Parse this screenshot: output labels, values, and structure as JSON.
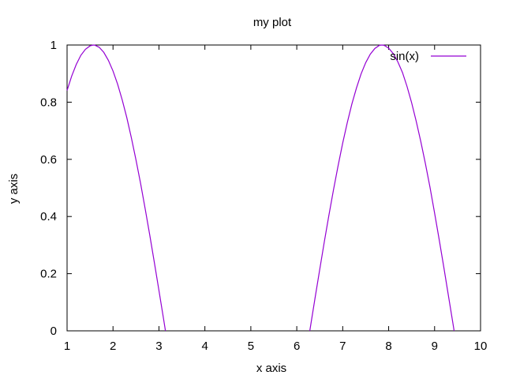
{
  "chart_data": {
    "type": "line",
    "title": "my plot",
    "xlabel": "x axis",
    "ylabel": "y axis",
    "xlim": [
      1,
      10
    ],
    "ylim": [
      0,
      1
    ],
    "xticks": [
      "1",
      "2",
      "3",
      "4",
      "5",
      "6",
      "7",
      "8",
      "9",
      "10"
    ],
    "yticks": [
      "0",
      "0.2",
      "0.4",
      "0.6",
      "0.8",
      "1"
    ],
    "grid": false,
    "legend_position": "top-right",
    "series": [
      {
        "name": "sin(x)",
        "color": "#9400d3",
        "x": [
          1.0,
          1.1,
          1.2,
          1.3,
          1.4,
          1.5,
          1.5708,
          1.6,
          1.7,
          1.8,
          1.9,
          2.0,
          2.1,
          2.2,
          2.3,
          2.4,
          2.5,
          2.6,
          2.7,
          2.8,
          2.9,
          3.0,
          3.1,
          3.1416,
          6.2832,
          6.4,
          6.5,
          6.6,
          6.7,
          6.8,
          6.9,
          7.0,
          7.1,
          7.2,
          7.3,
          7.4,
          7.5,
          7.6,
          7.7,
          7.8,
          7.854,
          7.9,
          8.0,
          8.1,
          8.2,
          8.3,
          8.4,
          8.5,
          8.6,
          8.7,
          8.8,
          8.9,
          9.0,
          9.1,
          9.2,
          9.3,
          9.4,
          9.4248
        ],
        "y": [
          0.841,
          0.891,
          0.932,
          0.964,
          0.985,
          0.997,
          1.0,
          0.9996,
          0.992,
          0.974,
          0.946,
          0.909,
          0.863,
          0.808,
          0.746,
          0.675,
          0.598,
          0.516,
          0.427,
          0.335,
          0.239,
          0.141,
          0.042,
          0.0,
          0.0,
          0.117,
          0.215,
          0.312,
          0.405,
          0.494,
          0.578,
          0.657,
          0.729,
          0.794,
          0.85,
          0.899,
          0.938,
          0.968,
          0.988,
          0.999,
          1.0,
          0.999,
          0.989,
          0.97,
          0.941,
          0.904,
          0.855,
          0.798,
          0.733,
          0.662,
          0.585,
          0.502,
          0.412,
          0.319,
          0.223,
          0.124,
          0.025,
          0.0
        ]
      }
    ]
  }
}
